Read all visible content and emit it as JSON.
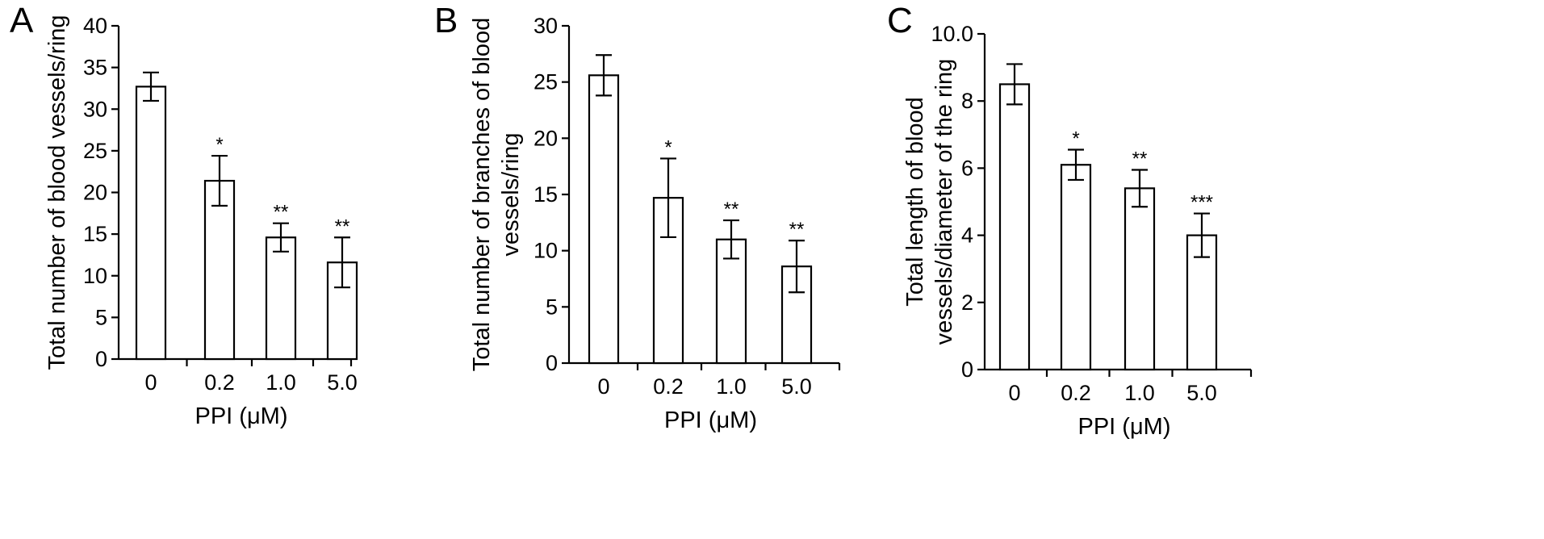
{
  "chart_data": [
    {
      "type": "bar",
      "panel": "A",
      "categories": [
        "0",
        "0.2",
        "1.0",
        "5.0"
      ],
      "values": [
        32.7,
        21.4,
        14.6,
        11.6
      ],
      "errors": [
        1.7,
        3.0,
        1.7,
        3.0
      ],
      "significance": [
        "",
        "*",
        "**",
        "**"
      ],
      "xlabel": "PPI (μM)",
      "ylabel": "Total number of blood vessels/ring",
      "ylim": [
        0,
        40
      ],
      "yticks": [
        0,
        5,
        10,
        15,
        20,
        25,
        30,
        35,
        40
      ],
      "ytick_labels": [
        "0",
        "5",
        "10",
        "15",
        "20",
        "25",
        "30",
        "35",
        "40"
      ],
      "grid": false
    },
    {
      "type": "bar",
      "panel": "B",
      "categories": [
        "0",
        "0.2",
        "1.0",
        "5.0"
      ],
      "values": [
        25.6,
        14.7,
        11.0,
        8.6
      ],
      "errors": [
        1.8,
        3.5,
        1.7,
        2.3
      ],
      "significance": [
        "",
        "*",
        "**",
        "**"
      ],
      "xlabel": "PPI (μM)",
      "ylabel": "Total number of branches of blood vessels/ring",
      "ylim": [
        0,
        30
      ],
      "yticks": [
        0,
        5,
        10,
        15,
        20,
        25,
        30
      ],
      "ytick_labels": [
        "0",
        "5",
        "10",
        "15",
        "20",
        "25",
        "30"
      ],
      "grid": false
    },
    {
      "type": "bar",
      "panel": "C",
      "categories": [
        "0",
        "0.2",
        "1.0",
        "5.0"
      ],
      "values": [
        8.5,
        6.1,
        5.4,
        4.0
      ],
      "errors": [
        0.6,
        0.45,
        0.55,
        0.65
      ],
      "significance": [
        "",
        "*",
        "**",
        "***"
      ],
      "xlabel": "PPI (μM)",
      "ylabel": "Total length of blood vessels/diameter of the ring",
      "ylim": [
        0,
        10
      ],
      "yticks": [
        0,
        2,
        4,
        6,
        8,
        10
      ],
      "ytick_labels": [
        "0",
        "2",
        "4",
        "6",
        "8",
        "10.0"
      ],
      "grid": false
    }
  ],
  "colors": {
    "bar_fill": "#ffffff",
    "stroke": "#000000",
    "text": "#000000"
  }
}
